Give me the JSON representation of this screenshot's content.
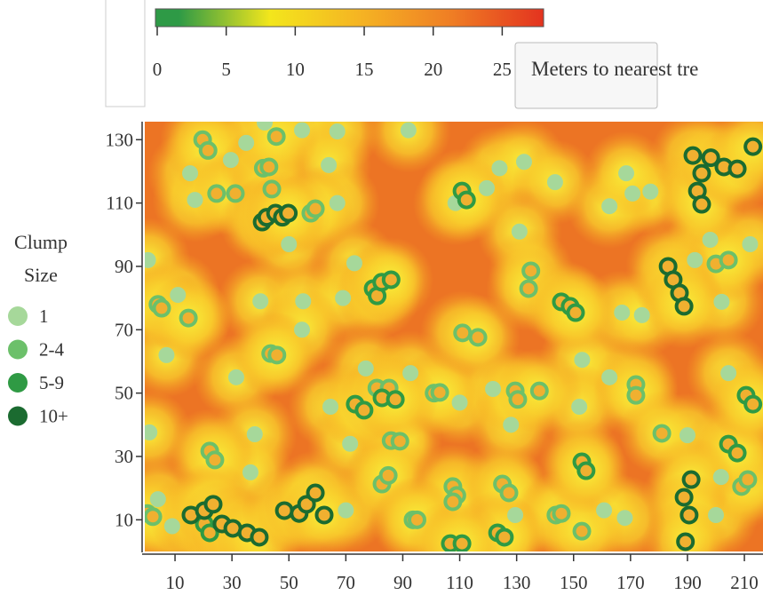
{
  "chart_data": {
    "type": "scatter",
    "xlim": [
      0,
      217
    ],
    "ylim": [
      0,
      136
    ],
    "xticks": [
      10,
      30,
      50,
      70,
      90,
      110,
      130,
      150,
      170,
      190,
      210
    ],
    "yticks": [
      10,
      30,
      50,
      70,
      90,
      110,
      130
    ],
    "legend_title": "Clump Size",
    "legend": "left",
    "colorbar": {
      "label": "Meters to nearest tre",
      "lim": [
        0,
        28
      ],
      "ticks": [
        0,
        5,
        10,
        15,
        20,
        25
      ],
      "colors": [
        "#2e9a46",
        "#2e9a46",
        "#f3e61c",
        "#f5b323",
        "#ef7d24",
        "#e3331f"
      ]
    },
    "series": [
      {
        "name": "1",
        "color": "#a6d89a",
        "x": [
          41.5,
          92,
          67,
          54.6,
          15.3,
          29.6,
          35,
          64,
          17,
          67,
          50,
          73,
          0.5,
          11,
          40,
          55,
          69,
          7,
          15,
          31.5,
          38,
          1,
          4,
          9,
          36.5,
          54.6,
          64.6,
          77,
          71.5,
          70,
          110,
          108.5,
          119.5,
          124,
          132.6,
          143.5,
          131,
          162.6,
          153,
          152,
          167,
          174,
          170.7,
          177,
          162.6,
          168.5,
          202,
          192.6,
          198,
          212,
          190,
          168,
          160.7,
          129.5,
          121.7,
          128,
          204.4,
          201.8,
          200,
          92.7
        ],
        "y": [
          135.4,
          133,
          132.6,
          133,
          119.4,
          123.6,
          129,
          122,
          111,
          110,
          97,
          91,
          92,
          81,
          79,
          79,
          80,
          62,
          74,
          55,
          37,
          37.6,
          16.5,
          8,
          25,
          70,
          45.7,
          57.8,
          34,
          13,
          47,
          110,
          114.7,
          121,
          123,
          116.6,
          101,
          55,
          60.5,
          45.7,
          75.4,
          74.6,
          113,
          113.6,
          109,
          119.4,
          78.8,
          92,
          98.4,
          97,
          36.7,
          10.6,
          13,
          11.5,
          51.3,
          40,
          56.3,
          23.5,
          11.5,
          56.3
        ]
      },
      {
        "name": "2-4",
        "color": "#6cc06a",
        "x": [
          19.7,
          21.6,
          24.6,
          31.2,
          41,
          43,
          44,
          45.6,
          57.7,
          59.3,
          4,
          5.3,
          14.7,
          43.6,
          45.8,
          80.9,
          85.2,
          85.9,
          89,
          22.2,
          24,
          82.7,
          84.9,
          101,
          103,
          111,
          116.4,
          107.6,
          109,
          107.6,
          125,
          127.3,
          135,
          134.2,
          129.5,
          130.4,
          138,
          143.8,
          145.7,
          152.9,
          171.9,
          171.9,
          181,
          200,
          204.4,
          209,
          211.2,
          0.3,
          2.2,
          93.6,
          95
        ],
        "y": [
          130,
          126.6,
          113,
          113,
          121,
          121.4,
          114.4,
          131,
          106.8,
          108.2,
          78,
          76.8,
          73.7,
          62.5,
          62,
          51.6,
          51.6,
          35,
          34.8,
          31.7,
          28.9,
          21.3,
          24,
          50,
          50.2,
          69,
          67.6,
          20.5,
          17.7,
          15.7,
          21.3,
          18.5,
          88.6,
          83,
          50.7,
          48,
          50.7,
          11.5,
          12,
          6.4,
          52.7,
          49.3,
          37.3,
          90.8,
          92,
          20.5,
          22.7,
          12,
          11,
          10,
          10
        ]
      },
      {
        "name": "5-9",
        "color": "#2f9a44",
        "x": [
          79.6,
          81,
          82.6,
          85.9,
          110.8,
          112.4,
          145.7,
          148.8,
          150.7,
          73.3,
          76.4,
          82.7,
          87.4,
          152.9,
          154.4,
          123.3,
          125.7,
          106.7,
          110.8,
          204.4,
          207.5,
          210.6,
          213,
          20.3,
          22.2
        ],
        "y": [
          83,
          80.7,
          85,
          85.8,
          113.8,
          111,
          78.8,
          77.4,
          75.4,
          46.5,
          44.6,
          48.5,
          48,
          28.3,
          25.5,
          5.9,
          4.5,
          2.5,
          2.5,
          33.9,
          31.1,
          49.3,
          46.5,
          8.7,
          5.9
        ]
      },
      {
        "name": "10+",
        "color": "#1b6b30",
        "x": [
          40.6,
          42.2,
          45.3,
          47.7,
          49.8,
          191.9,
          195,
          193.5,
          195,
          198.2,
          202.8,
          207.5,
          213,
          183.2,
          185,
          187.2,
          188.8,
          15.6,
          20.3,
          23.4,
          26.5,
          30.3,
          35.3,
          39.6,
          48.4,
          53.6,
          56.2,
          59.3,
          62.4,
          188.8,
          191.3,
          190.6,
          189.3
        ],
        "y": [
          104,
          105.5,
          106.8,
          105.5,
          106.8,
          125,
          119.4,
          113.8,
          109.6,
          124.3,
          121.4,
          120.8,
          127.8,
          90,
          85.8,
          81.6,
          77.4,
          11.5,
          12.9,
          14.9,
          8.7,
          7.3,
          5.9,
          4.5,
          12.9,
          12,
          14.9,
          18.5,
          11.5,
          17.1,
          22.7,
          11.5,
          3.1
        ]
      }
    ]
  }
}
